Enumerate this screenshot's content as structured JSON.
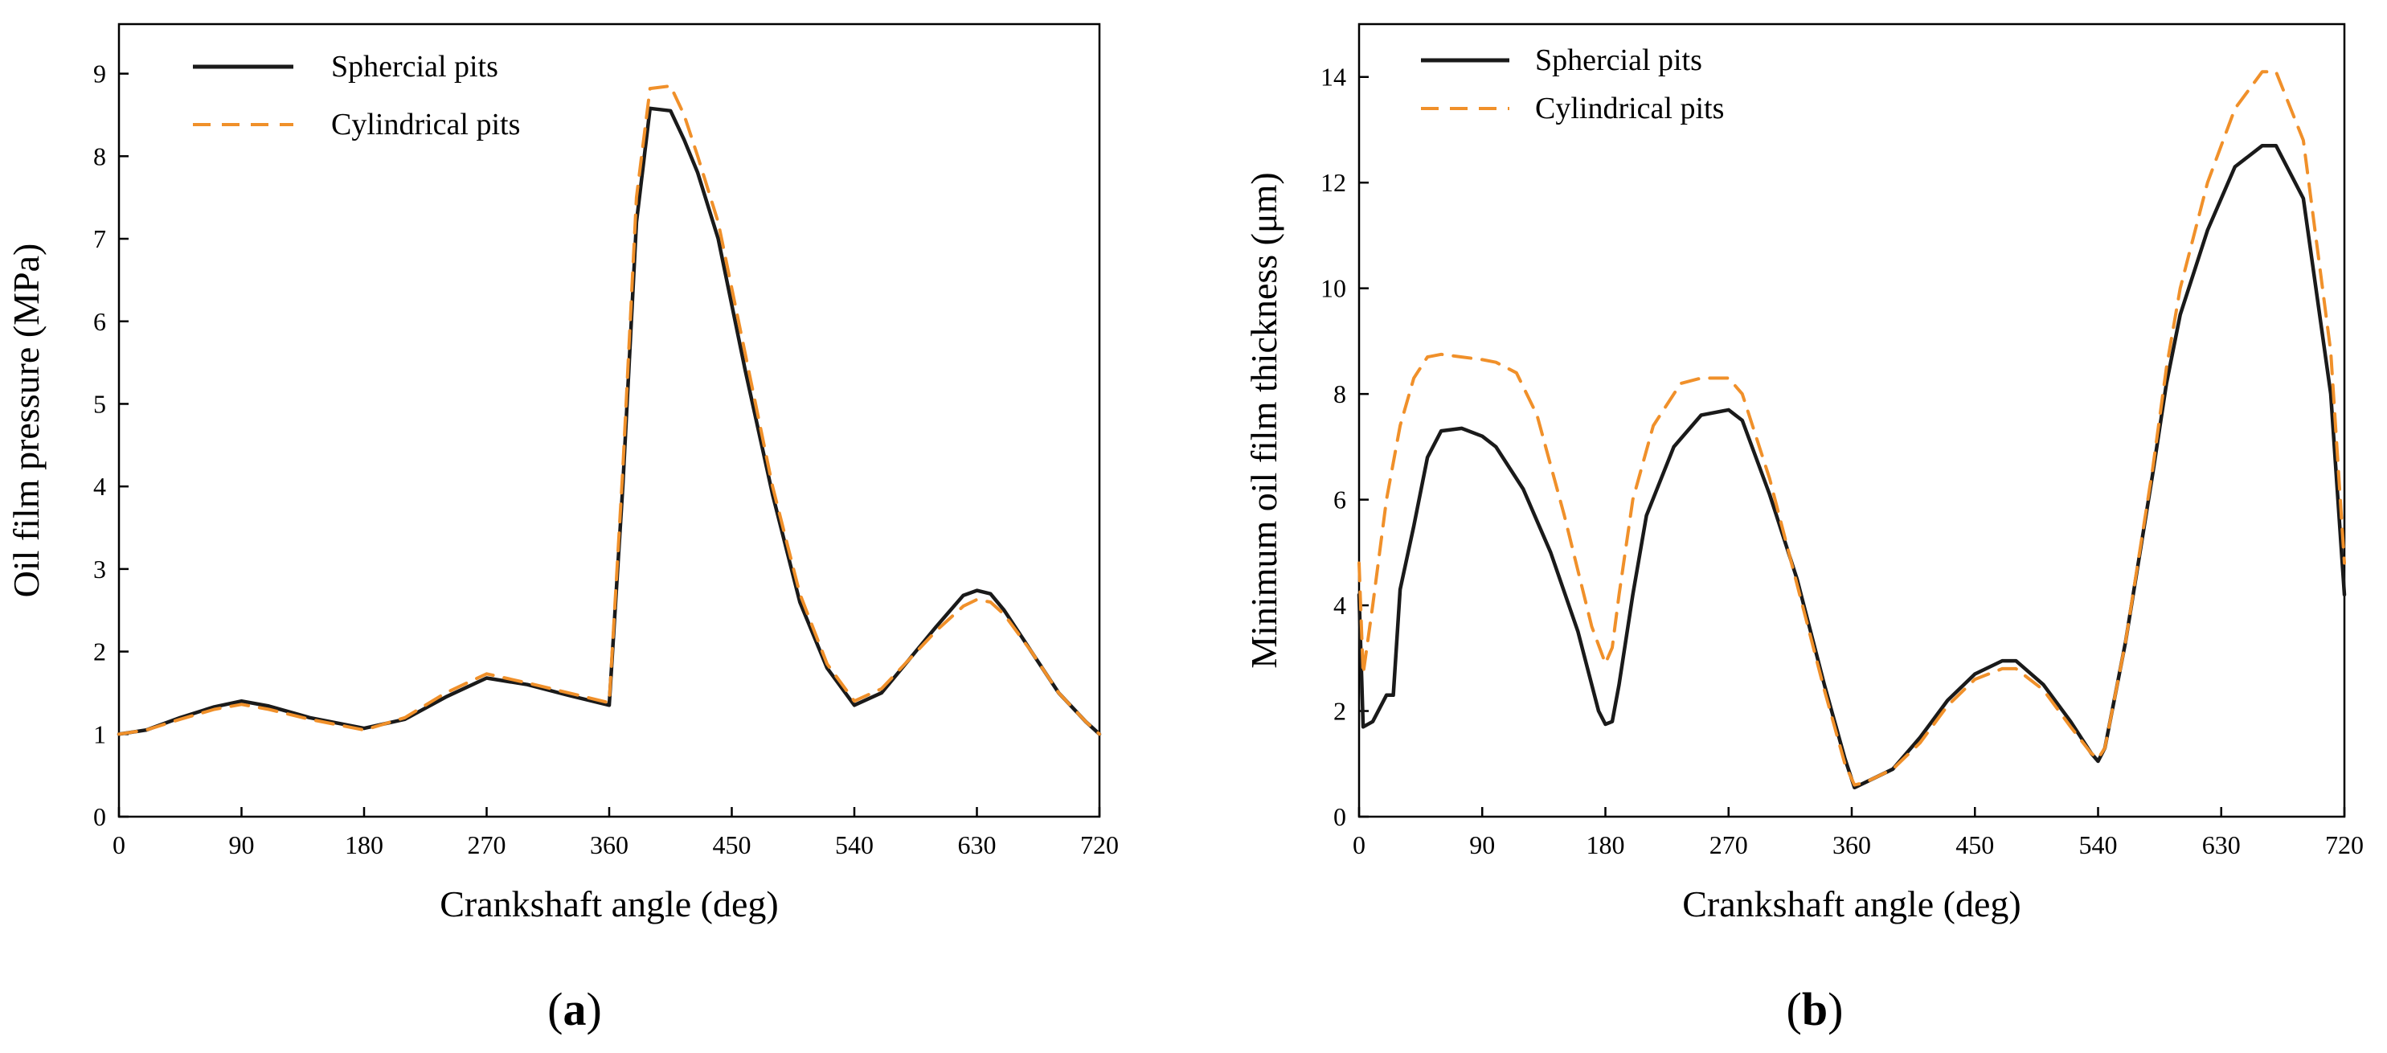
{
  "chart_data": [
    {
      "type": "line",
      "panel_label": "a",
      "xlabel": "Crankshaft angle (deg)",
      "ylabel": "Oil film pressure (MPa)",
      "xlim": [
        0,
        720
      ],
      "ylim": [
        0,
        9.6
      ],
      "xticks": [
        0,
        90,
        180,
        270,
        360,
        450,
        540,
        630,
        720
      ],
      "yticks": [
        0,
        1,
        2,
        3,
        4,
        5,
        6,
        7,
        8,
        9
      ],
      "legend_position": "top-left",
      "series": [
        {
          "name": "Sphercial pits",
          "color": "#1a1a1a",
          "style": "solid",
          "x": [
            0,
            20,
            45,
            70,
            90,
            110,
            140,
            180,
            210,
            240,
            270,
            300,
            330,
            360,
            370,
            380,
            390,
            405,
            415,
            425,
            440,
            460,
            480,
            500,
            520,
            540,
            560,
            580,
            600,
            620,
            630,
            640,
            650,
            670,
            690,
            710,
            720
          ],
          "y": [
            1.0,
            1.05,
            1.2,
            1.33,
            1.4,
            1.34,
            1.2,
            1.07,
            1.18,
            1.45,
            1.68,
            1.6,
            1.47,
            1.35,
            4.0,
            7.2,
            8.58,
            8.55,
            8.2,
            7.8,
            7.0,
            5.4,
            3.9,
            2.6,
            1.8,
            1.35,
            1.5,
            1.9,
            2.3,
            2.68,
            2.74,
            2.7,
            2.5,
            2.0,
            1.5,
            1.15,
            1.0
          ]
        },
        {
          "name": "Cylindrical pits",
          "color": "#f0902a",
          "style": "dashed",
          "x": [
            0,
            20,
            45,
            70,
            90,
            110,
            140,
            180,
            210,
            240,
            270,
            300,
            330,
            360,
            370,
            380,
            390,
            405,
            415,
            425,
            440,
            460,
            480,
            500,
            520,
            540,
            560,
            580,
            600,
            620,
            630,
            640,
            650,
            670,
            690,
            710,
            720
          ],
          "y": [
            1.0,
            1.05,
            1.18,
            1.3,
            1.36,
            1.3,
            1.18,
            1.05,
            1.2,
            1.5,
            1.73,
            1.62,
            1.5,
            1.38,
            4.2,
            7.5,
            8.82,
            8.85,
            8.5,
            8.0,
            7.2,
            5.6,
            4.0,
            2.7,
            1.85,
            1.4,
            1.55,
            1.9,
            2.25,
            2.55,
            2.63,
            2.6,
            2.45,
            2.0,
            1.5,
            1.15,
            1.0
          ]
        }
      ]
    },
    {
      "type": "line",
      "panel_label": "b",
      "xlabel": "Crankshaft angle (deg)",
      "ylabel": "Minimum oil film thickness (μm)",
      "xlim": [
        0,
        720
      ],
      "ylim": [
        0,
        15
      ],
      "xticks": [
        0,
        90,
        180,
        270,
        360,
        450,
        540,
        630,
        720
      ],
      "yticks": [
        0,
        2,
        4,
        6,
        8,
        10,
        12,
        14
      ],
      "legend_position": "top-left",
      "series": [
        {
          "name": "Sphercial pits",
          "color": "#1a1a1a",
          "style": "solid",
          "x": [
            0,
            3,
            10,
            20,
            25,
            30,
            40,
            50,
            60,
            75,
            90,
            100,
            120,
            140,
            160,
            175,
            180,
            185,
            190,
            200,
            210,
            230,
            250,
            270,
            280,
            300,
            320,
            340,
            355,
            362,
            370,
            390,
            410,
            430,
            450,
            470,
            480,
            500,
            520,
            535,
            540,
            545,
            560,
            580,
            590,
            600,
            620,
            640,
            660,
            670,
            690,
            710,
            720
          ],
          "y": [
            4.2,
            1.7,
            1.8,
            2.3,
            2.3,
            4.3,
            5.5,
            6.8,
            7.3,
            7.35,
            7.2,
            7.0,
            6.2,
            5.0,
            3.5,
            2.0,
            1.75,
            1.8,
            2.5,
            4.2,
            5.7,
            7.0,
            7.6,
            7.7,
            7.5,
            6.1,
            4.5,
            2.5,
            1.1,
            0.55,
            0.65,
            0.9,
            1.5,
            2.2,
            2.7,
            2.95,
            2.95,
            2.5,
            1.8,
            1.2,
            1.05,
            1.3,
            3.3,
            6.5,
            8.2,
            9.5,
            11.1,
            12.3,
            12.7,
            12.7,
            11.7,
            8.0,
            4.2
          ]
        },
        {
          "name": "Cylindrical pits",
          "color": "#f0902a",
          "style": "dashed",
          "x": [
            0,
            3,
            10,
            20,
            30,
            40,
            50,
            60,
            75,
            90,
            100,
            115,
            130,
            150,
            170,
            180,
            185,
            190,
            200,
            215,
            235,
            250,
            270,
            280,
            300,
            320,
            340,
            355,
            362,
            370,
            390,
            410,
            430,
            450,
            470,
            480,
            500,
            520,
            535,
            540,
            545,
            560,
            580,
            590,
            600,
            620,
            640,
            660,
            670,
            690,
            710,
            720
          ],
          "y": [
            4.8,
            2.7,
            4.0,
            6.0,
            7.4,
            8.3,
            8.7,
            8.75,
            8.7,
            8.65,
            8.6,
            8.4,
            7.6,
            5.7,
            3.6,
            2.9,
            3.2,
            4.2,
            6.0,
            7.4,
            8.2,
            8.3,
            8.3,
            8.0,
            6.4,
            4.4,
            2.4,
            1.0,
            0.6,
            0.65,
            0.9,
            1.4,
            2.1,
            2.6,
            2.8,
            2.8,
            2.4,
            1.7,
            1.2,
            1.1,
            1.3,
            3.3,
            6.6,
            8.5,
            10.0,
            12.0,
            13.4,
            14.1,
            14.1,
            12.8,
            8.8,
            4.8
          ]
        }
      ]
    }
  ]
}
